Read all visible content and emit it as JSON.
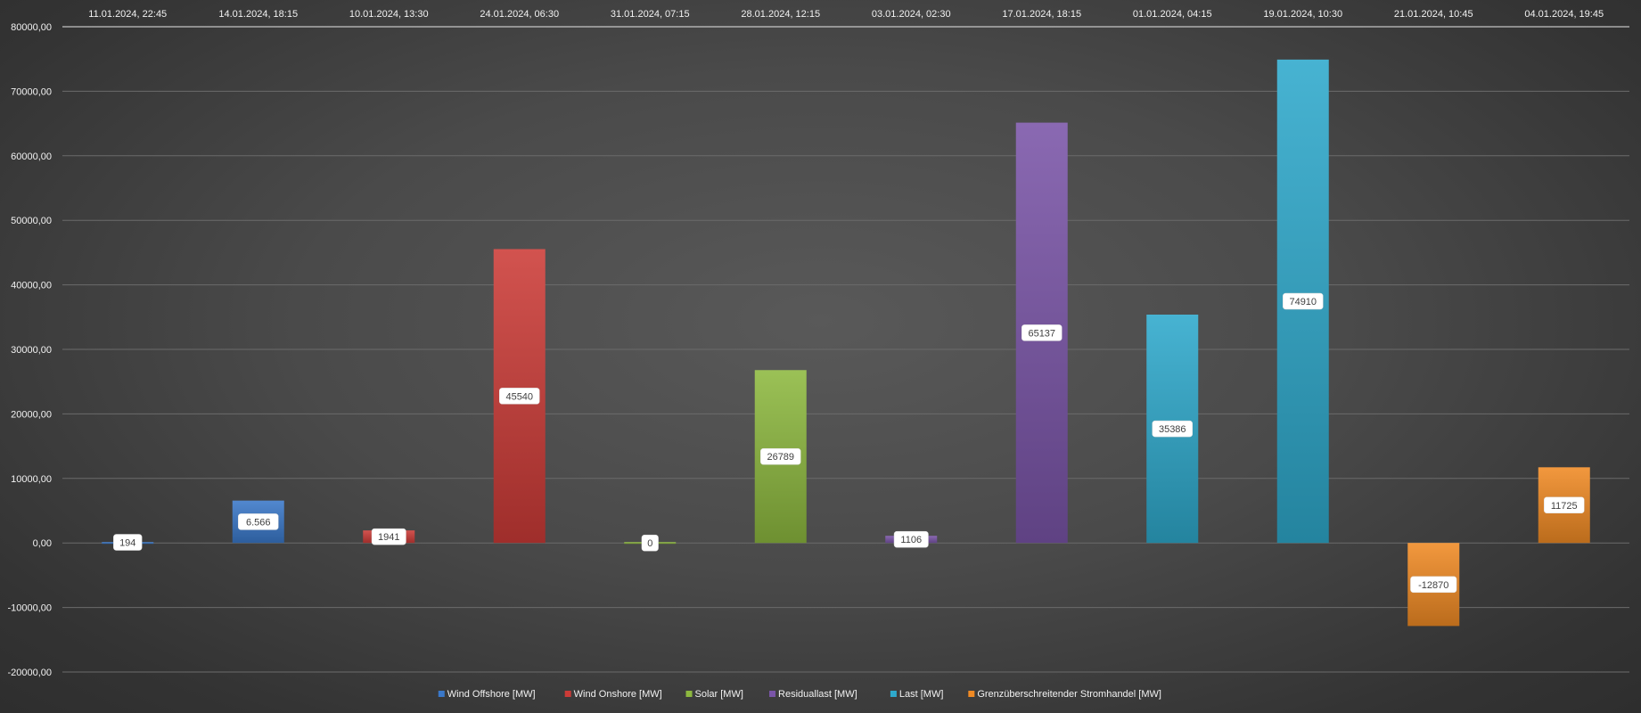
{
  "chart_data": {
    "type": "bar",
    "title": "",
    "xlabel": "",
    "ylabel": "",
    "ylim": [
      -20000,
      80000
    ],
    "y_ticks": [
      -20000,
      -10000,
      0,
      10000,
      20000,
      30000,
      40000,
      50000,
      60000,
      70000,
      80000
    ],
    "y_tick_labels": [
      "-20000,00",
      "-10000,00",
      "0,00",
      "10000,00",
      "20000,00",
      "30000,00",
      "40000,00",
      "50000,00",
      "60000,00",
      "70000,00",
      "80000,00"
    ],
    "x_axis_position": "top",
    "grid": true,
    "legend_position": "bottom",
    "categories": [
      "11.01.2024, 22:45",
      "14.01.2024, 18:15",
      "10.01.2024, 13:30",
      "24.01.2024, 06:30",
      "31.01.2024, 07:15",
      "28.01.2024, 12:15",
      "03.01.2024, 02:30",
      "17.01.2024, 18:15",
      "01.01.2024, 04:15",
      "19.01.2024, 10:30",
      "21.01.2024, 10:45",
      "04.01.2024, 19:45"
    ],
    "series": [
      {
        "name": "Wind Offshore [MW]",
        "color": "#3a78c9",
        "points": [
          {
            "index": 0,
            "value": 194,
            "label": "194"
          },
          {
            "index": 1,
            "value": 6566,
            "label": "6.566"
          }
        ]
      },
      {
        "name": "Wind Onshore [MW]",
        "color": "#cc3b37",
        "points": [
          {
            "index": 2,
            "value": 1941,
            "label": "1941"
          },
          {
            "index": 3,
            "value": 45540,
            "label": "45540"
          }
        ]
      },
      {
        "name": "Solar [MW]",
        "color": "#8db83f",
        "points": [
          {
            "index": 4,
            "value": 0,
            "label": "0"
          },
          {
            "index": 5,
            "value": 26789,
            "label": "26789"
          }
        ]
      },
      {
        "name": "Residuallast [MW]",
        "color": "#7a55a8",
        "points": [
          {
            "index": 6,
            "value": 1106,
            "label": "1106"
          },
          {
            "index": 7,
            "value": 65137,
            "label": "65137"
          }
        ]
      },
      {
        "name": "Last [MW]",
        "color": "#2ea9cc",
        "points": [
          {
            "index": 8,
            "value": 35386,
            "label": "35386"
          },
          {
            "index": 9,
            "value": 74910,
            "label": "74910"
          }
        ]
      },
      {
        "name": "Grenzüberschreitender Stromhandel [MW]",
        "color": "#f08a24",
        "points": [
          {
            "index": 10,
            "value": -12870,
            "label": "-12870"
          },
          {
            "index": 11,
            "value": 11725,
            "label": "11725"
          }
        ]
      }
    ]
  }
}
